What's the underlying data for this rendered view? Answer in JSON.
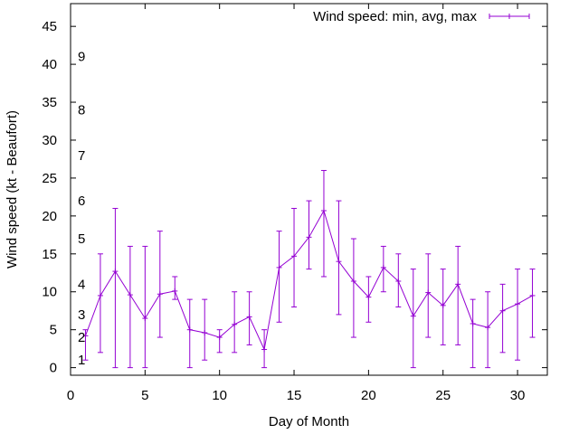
{
  "chart_data": {
    "type": "line",
    "title": "",
    "xlabel": "Day of Month",
    "ylabel": "Wind speed (kt - Beaufort)",
    "xlim": [
      0,
      32
    ],
    "ylim": [
      -1,
      48
    ],
    "xticks": [
      0,
      5,
      10,
      15,
      20,
      25,
      30
    ],
    "yticks": [
      0,
      5,
      10,
      15,
      20,
      25,
      30,
      35,
      40,
      45
    ],
    "grid": false,
    "legend_position": "top-right",
    "beaufort_scale": [
      {
        "label": "1",
        "value": 1
      },
      {
        "label": "2",
        "value": 4
      },
      {
        "label": "3",
        "value": 7
      },
      {
        "label": "4",
        "value": 11
      },
      {
        "label": "5",
        "value": 17
      },
      {
        "label": "6",
        "value": 22
      },
      {
        "label": "7",
        "value": 28
      },
      {
        "label": "8",
        "value": 34
      },
      {
        "label": "9",
        "value": 41
      }
    ],
    "series": [
      {
        "name": "Wind speed: min, avg, max",
        "color": "#9400d3",
        "x": [
          1,
          2,
          3,
          4,
          5,
          6,
          7,
          8,
          9,
          10,
          11,
          12,
          13,
          14,
          15,
          16,
          17,
          18,
          19,
          20,
          21,
          22,
          23,
          24,
          25,
          26,
          27,
          28,
          29,
          30,
          31
        ],
        "avg": [
          4.2,
          9.5,
          12.7,
          9.6,
          6.5,
          9.7,
          10.1,
          5.0,
          4.6,
          4.0,
          5.7,
          6.7,
          2.4,
          13.2,
          14.7,
          17.2,
          20.7,
          14.0,
          11.4,
          9.3,
          13.2,
          11.4,
          6.8,
          9.9,
          8.2,
          11.0,
          5.8,
          5.3,
          7.5,
          8.4,
          9.5
        ],
        "min": [
          1,
          2,
          0,
          0,
          0,
          4,
          9,
          0,
          1,
          2,
          2,
          3,
          0,
          6,
          8,
          13,
          12,
          7,
          4,
          6,
          10,
          8,
          0,
          4,
          3,
          3,
          0,
          0,
          2,
          1,
          4
        ],
        "max": [
          5,
          15,
          21,
          16,
          16,
          18,
          12,
          9,
          9,
          5,
          10,
          10,
          5,
          18,
          21,
          22,
          26,
          22,
          17,
          12,
          16,
          15,
          13,
          15,
          13,
          16,
          9,
          10,
          11,
          13,
          13
        ]
      }
    ]
  }
}
